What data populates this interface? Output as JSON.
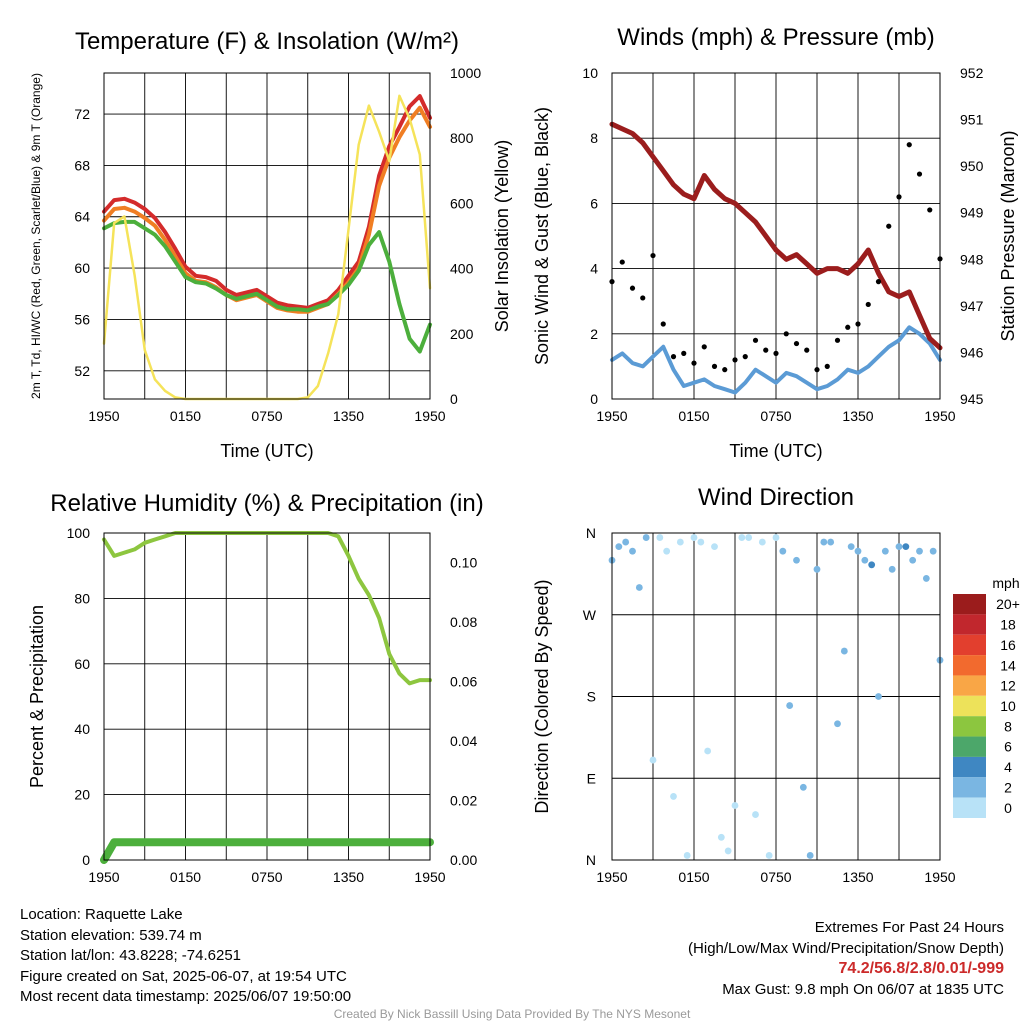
{
  "chart_data": [
    {
      "type": "line",
      "title": "Temperature (F) & Insolation (W/m²)",
      "xlabel": "Time (UTC)",
      "ylabel_left": "2m T, Td, HI/WC (Red, Green, Scarlet/Blue) & 9m T (Orange)",
      "ylabel_right": "Solar Insolation (Yellow)",
      "x_ticks": [
        "1950",
        "0150",
        "0750",
        "1350",
        "1950"
      ],
      "y_ticks_left": [
        52,
        56,
        60,
        64,
        68,
        72
      ],
      "y_ticks_right": [
        0,
        200,
        400,
        600,
        800,
        1000
      ],
      "ylim_left": [
        49.8,
        75.2
      ],
      "ylim_right": [
        0,
        1000
      ],
      "grid": true,
      "series": [
        {
          "color": "#d42b2b",
          "axis": "left",
          "values": [
            64.4,
            65.3,
            65.4,
            65.1,
            64.6,
            63.9,
            62.8,
            61.5,
            60.1,
            59.4,
            59.3,
            59.0,
            58.3,
            57.9,
            58.1,
            58.3,
            57.8,
            57.3,
            57.1,
            57.0,
            56.9,
            57.2,
            57.5,
            58.3,
            59.4,
            60.5,
            63.2,
            67.2,
            69.5,
            71.0,
            72.6,
            73.4,
            71.7
          ]
        },
        {
          "color": "#f07e23",
          "axis": "left",
          "values": [
            63.7,
            64.6,
            64.7,
            64.4,
            63.9,
            63.3,
            62.2,
            60.9,
            59.6,
            59.0,
            58.9,
            58.5,
            57.9,
            57.5,
            57.7,
            57.9,
            57.4,
            56.9,
            56.7,
            56.6,
            56.6,
            56.9,
            57.2,
            58.0,
            58.9,
            60.0,
            62.6,
            66.4,
            68.6,
            70.2,
            71.5,
            72.5,
            71.0
          ]
        },
        {
          "color": "#4caf3c",
          "axis": "left",
          "values": [
            63.1,
            63.5,
            63.6,
            63.6,
            63.1,
            62.6,
            61.7,
            60.5,
            59.3,
            58.9,
            58.8,
            58.4,
            57.9,
            57.6,
            57.8,
            58.0,
            57.5,
            57.0,
            56.8,
            56.8,
            56.7,
            57.0,
            57.2,
            57.9,
            58.7,
            59.8,
            61.8,
            62.8,
            60.5,
            57.2,
            54.5,
            53.5,
            55.6
          ]
        },
        {
          "color": "#f5e35a",
          "axis": "right",
          "values": [
            170,
            540,
            560,
            380,
            150,
            60,
            25,
            5,
            0,
            0,
            0,
            0,
            0,
            0,
            0,
            0,
            0,
            0,
            0,
            0,
            5,
            40,
            140,
            260,
            520,
            780,
            900,
            820,
            730,
            930,
            860,
            750,
            340
          ]
        }
      ]
    },
    {
      "type": "line",
      "title": "Winds (mph) & Pressure (mb)",
      "xlabel": "Time (UTC)",
      "ylabel_left": "Sonic Wind & Gust (Blue, Black)",
      "ylabel_right": "Station Pressure (Maroon)",
      "x_ticks": [
        "1950",
        "0150",
        "0750",
        "1350",
        "1950"
      ],
      "y_ticks_left": [
        0,
        2,
        4,
        6,
        8,
        10
      ],
      "y_ticks_right": [
        945,
        946,
        947,
        948,
        949,
        950,
        951,
        952
      ],
      "ylim_left": [
        0,
        10
      ],
      "ylim_right": [
        945,
        952
      ],
      "grid": true,
      "series": [
        {
          "color": "#5b9bd5",
          "axis": "left",
          "values": [
            1.2,
            1.4,
            1.1,
            1.0,
            1.3,
            1.6,
            0.9,
            0.4,
            0.5,
            0.6,
            0.4,
            0.3,
            0.2,
            0.5,
            0.9,
            0.7,
            0.5,
            0.8,
            0.7,
            0.5,
            0.3,
            0.4,
            0.6,
            0.9,
            0.8,
            1.0,
            1.3,
            1.6,
            1.8,
            2.2,
            2.0,
            1.7,
            1.2
          ]
        },
        {
          "color": "#9b1d1d",
          "axis": "right",
          "values": [
            950.9,
            950.8,
            950.7,
            950.5,
            950.2,
            949.9,
            949.6,
            949.4,
            949.3,
            949.8,
            949.5,
            949.3,
            949.2,
            949.0,
            948.8,
            948.5,
            948.2,
            948.0,
            948.1,
            947.9,
            947.7,
            947.8,
            947.8,
            947.7,
            947.9,
            948.2,
            947.7,
            947.3,
            947.2,
            947.3,
            946.8,
            946.3,
            946.1
          ]
        },
        {
          "color": "#000000",
          "axis": "left",
          "kind": "scatter",
          "values": [
            3.6,
            4.2,
            3.4,
            3.1,
            4.4,
            2.3,
            1.3,
            1.4,
            1.1,
            1.6,
            1.0,
            0.9,
            1.2,
            1.3,
            1.8,
            1.5,
            1.4,
            2.0,
            1.7,
            1.5,
            0.9,
            1.0,
            1.8,
            2.2,
            2.3,
            2.9,
            3.6,
            5.3,
            6.2,
            7.8,
            6.9,
            5.8,
            4.3
          ]
        }
      ]
    },
    {
      "type": "line",
      "title": "Relative Humidity (%) & Precipitation (in)",
      "xlabel": "",
      "ylabel_left": "Percent & Precipitation",
      "x_ticks": [
        "1950",
        "0150",
        "0750",
        "1350",
        "1950"
      ],
      "y_ticks_left": [
        0,
        20,
        40,
        60,
        80,
        100
      ],
      "y_ticks_right": [
        "0.00",
        "0.02",
        "0.04",
        "0.06",
        "0.08",
        "0.10"
      ],
      "ylim_left": [
        0,
        100
      ],
      "ylim_right": [
        0,
        0.11
      ],
      "grid": true,
      "series": [
        {
          "color": "#8dc63f",
          "axis": "left",
          "values": [
            98,
            93,
            94,
            95,
            97,
            98,
            99,
            100,
            100,
            100,
            100,
            100,
            100,
            100,
            100,
            100,
            100,
            100,
            100,
            100,
            100,
            100,
            100,
            99,
            93,
            86,
            81,
            74,
            63,
            57,
            54,
            55,
            55
          ]
        },
        {
          "color": "#4caf3c",
          "axis": "right",
          "values": [
            0.0,
            0.006,
            0.006,
            0.006,
            0.006,
            0.006,
            0.006,
            0.006,
            0.006,
            0.006,
            0.006,
            0.006,
            0.006,
            0.006,
            0.006,
            0.006,
            0.006,
            0.006,
            0.006,
            0.006,
            0.006,
            0.006,
            0.006,
            0.006,
            0.006,
            0.006,
            0.006,
            0.006,
            0.006,
            0.006,
            0.006,
            0.006,
            0.006
          ]
        }
      ]
    },
    {
      "type": "scatter",
      "title": "Wind Direction",
      "xlabel": "",
      "ylabel_left": "Direction (Colored By Speed)",
      "x_ticks": [
        "1950",
        "0150",
        "0750",
        "1350",
        "1950"
      ],
      "y_ticks_left": [
        "N",
        "E",
        "S",
        "W",
        "N"
      ],
      "ylim_left": [
        0,
        360
      ],
      "grid": true,
      "colorbar": {
        "title": "mph",
        "labels": [
          "20+",
          "18",
          "16",
          "14",
          "12",
          "10",
          "8",
          "6",
          "4",
          "2",
          "0"
        ],
        "colors": [
          "#9b1c1c",
          "#c1272d",
          "#e23f2e",
          "#f26a2e",
          "#f9a646",
          "#ede25a",
          "#8cc63f",
          "#4ca76a",
          "#3f87c2",
          "#7ab6e2",
          "#b8e2f7"
        ]
      },
      "x": [
        0.0,
        0.5,
        1.0,
        1.5,
        2.0,
        2.5,
        3.0,
        3.5,
        4.0,
        4.5,
        5.0,
        5.5,
        6.0,
        6.5,
        7.0,
        7.5,
        8.0,
        8.5,
        9.0,
        9.5,
        10.0,
        10.5,
        11.0,
        11.5,
        12.0,
        12.5,
        13.0,
        13.5,
        14.0,
        14.5,
        15.0,
        15.5,
        16.0,
        16.5,
        17.0,
        17.5,
        18.0,
        18.5,
        19.0,
        19.5,
        20.0,
        20.5,
        21.0,
        21.5,
        22.0,
        22.5,
        23.0,
        23.5,
        24.0
      ],
      "directions": [
        330,
        345,
        350,
        340,
        300,
        355,
        110,
        355,
        340,
        70,
        350,
        5,
        355,
        350,
        120,
        345,
        25,
        10,
        60,
        355,
        355,
        50,
        350,
        5,
        355,
        340,
        170,
        330,
        80,
        5,
        320,
        350,
        350,
        150,
        230,
        345,
        340,
        330,
        325,
        180,
        340,
        320,
        345,
        345,
        330,
        340,
        310,
        340,
        220
      ],
      "speeds": [
        1.5,
        2.0,
        1.8,
        1.2,
        1.0,
        1.5,
        0.9,
        0.8,
        0.6,
        0.5,
        0.4,
        0.3,
        0.5,
        0.7,
        0.8,
        0.6,
        0.5,
        0.6,
        0.7,
        0.5,
        0.4,
        0.4,
        0.6,
        0.8,
        0.9,
        1.0,
        1.3,
        1.6,
        2.0,
        2.4,
        2.6,
        2.8,
        2.2,
        1.9,
        1.5,
        1.2,
        2.5,
        2.8,
        3.0,
        2.6,
        2.2,
        2.0,
        2.8,
        3.1,
        2.9,
        2.5,
        2.7,
        2.3,
        1.8
      ]
    }
  ],
  "station": {
    "location": "Location: Raquette Lake",
    "elevation": "Station elevation: 539.74 m",
    "latlon": "Station lat/lon: 43.8228; -74.6251",
    "created": "Figure created on Sat, 2025-06-07, at 19:54 UTC",
    "recent": "Most recent data timestamp: 2025/06/07 19:50:00"
  },
  "extremes": {
    "title": "Extremes For Past 24 Hours",
    "subtitle": "(High/Low/Max Wind/Precipitation/Snow Depth)",
    "values": "74.2/56.8/2.8/0.01/-999",
    "gust": "Max Gust: 9.8 mph On 06/07 at 1835 UTC"
  },
  "credit": "Created By Nick Bassill Using Data Provided By The NYS Mesonet"
}
